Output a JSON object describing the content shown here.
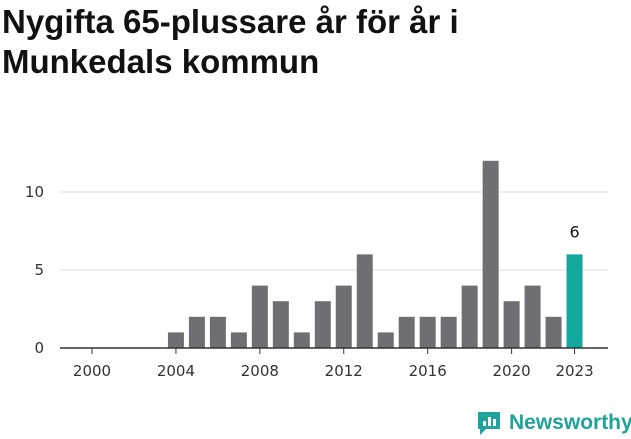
{
  "title": "Nygifta 65-plussare år för år i Munkedals kommun",
  "brand": {
    "name": "Newsworthy",
    "icon": "newsworthy-logo-icon"
  },
  "colors": {
    "bar": "#6f6e73",
    "highlight": "#13a89e",
    "grid": "#dddddd",
    "axis": "#333333"
  },
  "chart_data": {
    "type": "bar",
    "title": "Nygifta 65-plussare år för år i Munkedals kommun",
    "xlabel": "",
    "ylabel": "",
    "x": [
      2000,
      2001,
      2002,
      2003,
      2004,
      2005,
      2006,
      2007,
      2008,
      2009,
      2010,
      2011,
      2012,
      2013,
      2014,
      2015,
      2016,
      2017,
      2018,
      2019,
      2020,
      2021,
      2022,
      2023
    ],
    "values": [
      0,
      0,
      0,
      0,
      1,
      2,
      2,
      1,
      4,
      3,
      1,
      3,
      4,
      6,
      1,
      2,
      2,
      2,
      4,
      12,
      3,
      4,
      2,
      6
    ],
    "x_ticks": [
      "2000",
      "2004",
      "2008",
      "2012",
      "2016",
      "2020",
      "2023"
    ],
    "y_ticks": [
      "0",
      "5",
      "10"
    ],
    "ylim": [
      0,
      12
    ],
    "highlight": {
      "x": 2023,
      "label": "6"
    },
    "grid": true,
    "legend": "none"
  }
}
